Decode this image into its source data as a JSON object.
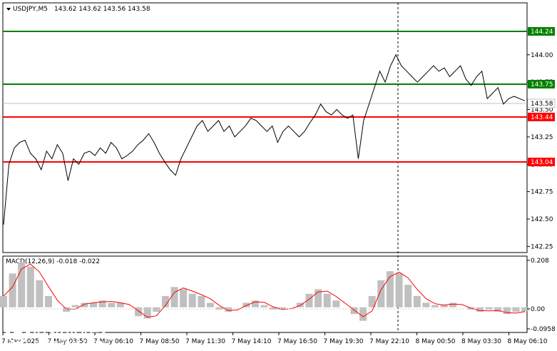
{
  "header": {
    "symbol": "USDJPY,M5",
    "ohlc": "143.62 143.62 143.56 143.58"
  },
  "price_axis": {
    "ticks": [
      "144.00",
      "143.75",
      "143.50",
      "143.25",
      "143.00",
      "142.75",
      "142.50",
      "142.25"
    ]
  },
  "levels": [
    {
      "label": "144.24",
      "color": "#008000"
    },
    {
      "label": "143.75",
      "color": "#008000"
    },
    {
      "label": "143.44",
      "color": "#ff0000"
    },
    {
      "label": "143.04",
      "color": "#ff0000"
    }
  ],
  "current_price": {
    "label": "143.58"
  },
  "macd": {
    "header": "MACD(12,26,9) -0.018 -0.022",
    "ticks": [
      "0.208",
      "0.00",
      "-0.0958"
    ]
  },
  "time_axis": {
    "labels": [
      "7 May 2025",
      "7 May 03:50",
      "7 May 06:10",
      "7 May 08:50",
      "7 May 11:30",
      "7 May 14:10",
      "7 May 16:50",
      "7 May 19:30",
      "7 May 22:10",
      "8 May 00:50",
      "8 May 03:30",
      "8 May 06:10"
    ]
  },
  "brand": {
    "name": "instaforex",
    "tagline": "Instant Forex Trading"
  },
  "chart_data": {
    "type": "line",
    "title": "USDJPY,M5",
    "x_labels": [
      "7 May 2025",
      "7 May 03:50",
      "7 May 06:10",
      "7 May 08:50",
      "7 May 11:30",
      "7 May 14:10",
      "7 May 16:50",
      "7 May 19:30",
      "7 May 22:10",
      "8 May 00:50",
      "8 May 03:30",
      "8 May 06:10"
    ],
    "ylim": [
      142.22,
      144.37
    ],
    "series": [
      {
        "values": [
          142.45,
          143.0,
          143.15,
          143.2,
          143.22,
          143.1,
          143.05,
          142.95,
          143.12,
          143.05,
          143.18,
          143.1,
          142.85,
          143.05,
          143.0,
          143.1,
          143.12,
          143.08,
          143.15,
          143.1,
          143.2,
          143.15,
          143.05,
          143.08,
          143.12,
          143.18,
          143.22,
          143.28,
          143.2,
          143.1,
          143.02,
          142.95,
          142.9,
          143.05,
          143.15,
          143.25,
          143.35,
          143.4,
          143.3,
          143.35,
          143.4,
          143.3,
          143.35,
          143.25,
          143.3,
          143.35,
          143.42,
          143.4,
          143.35,
          143.3,
          143.35,
          143.2,
          143.3,
          143.35,
          143.3,
          143.25,
          143.3,
          143.38,
          143.45,
          143.55,
          143.48,
          143.45,
          143.5,
          143.45,
          143.42,
          143.45,
          143.05,
          143.4,
          143.55,
          143.7,
          143.85,
          143.75,
          143.9,
          144.0,
          143.9,
          143.85,
          143.8,
          143.75,
          143.8,
          143.85,
          143.9,
          143.85,
          143.88,
          143.8,
          143.85,
          143.9,
          143.78,
          143.72,
          143.8,
          143.85,
          143.6,
          143.65,
          143.7,
          143.55,
          143.6,
          143.62,
          143.6,
          143.58
        ]
      },
      {
        "name": "MACD(12,26,9)",
        "values": [
          0.05,
          0.15,
          0.2,
          0.18,
          0.12,
          0.05,
          0.0,
          -0.02,
          0.01,
          0.02,
          0.02,
          0.03,
          0.02,
          0.02,
          0.0,
          -0.04,
          -0.05,
          -0.02,
          0.05,
          0.09,
          0.08,
          0.06,
          0.05,
          0.02,
          -0.01,
          -0.02,
          0.0,
          0.02,
          0.03,
          0.01,
          -0.01,
          -0.01,
          0.0,
          0.02,
          0.06,
          0.08,
          0.06,
          0.03,
          0.0,
          -0.03,
          -0.06,
          0.05,
          0.12,
          0.16,
          0.15,
          0.1,
          0.05,
          0.02,
          0.01,
          0.01,
          0.02,
          0.0,
          -0.01,
          -0.02,
          -0.01,
          -0.02,
          -0.03,
          -0.02,
          -0.018
        ]
      }
    ],
    "horizontal_levels": [
      144.24,
      143.75,
      143.44,
      143.04
    ],
    "current_price": 143.58,
    "macd_ylim": [
      -0.0958,
      0.208
    ]
  }
}
